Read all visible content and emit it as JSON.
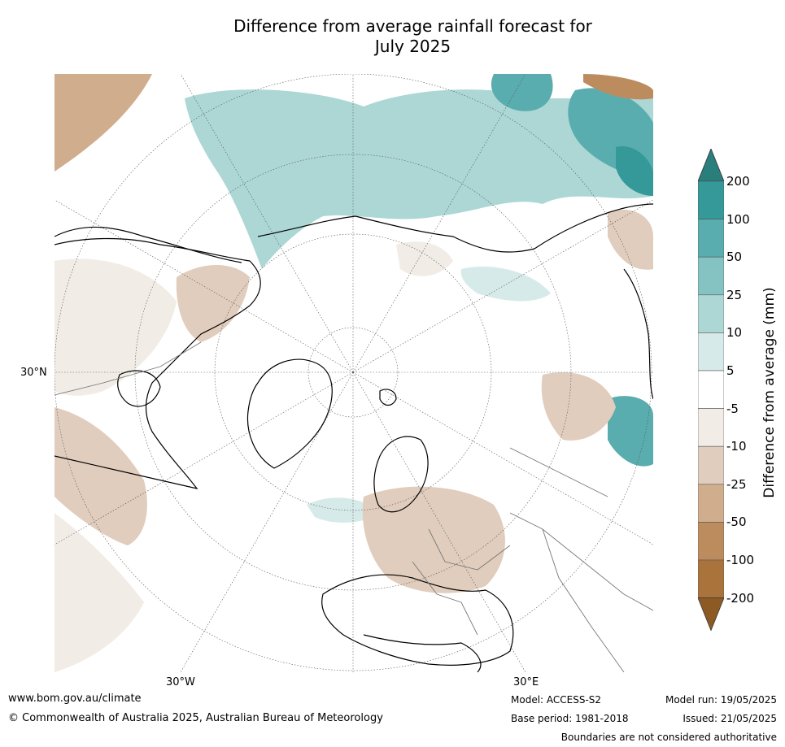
{
  "title": {
    "line1": "Difference from average rainfall forecast for",
    "line2": "July 2025"
  },
  "map": {
    "projection": "north polar stereographic",
    "lat_labels": [
      "30°N"
    ],
    "lon_labels": [
      "30°W",
      "30°E"
    ]
  },
  "colorbar": {
    "label": "Difference from average (mm)",
    "ticks": [
      "200",
      "100",
      "50",
      "25",
      "10",
      "5",
      "-5",
      "-10",
      "-25",
      "-50",
      "-100",
      "-200"
    ],
    "bins": [
      {
        "range": ">200",
        "color": "#2a7f7c"
      },
      {
        "range": "100 to 200",
        "color": "#35999a"
      },
      {
        "range": "50 to 100",
        "color": "#5aadae"
      },
      {
        "range": "25 to 50",
        "color": "#84c3c2"
      },
      {
        "range": "10 to 25",
        "color": "#acd7d5"
      },
      {
        "range": "5 to 10",
        "color": "#d6ebe9"
      },
      {
        "range": "-5 to 5",
        "color": "#ffffff"
      },
      {
        "range": "-10 to -5",
        "color": "#f1ece6"
      },
      {
        "range": "-25 to -10",
        "color": "#e1cdbd"
      },
      {
        "range": "-50 to -25",
        "color": "#cfad8d"
      },
      {
        "range": "-100 to -50",
        "color": "#bd8c5e"
      },
      {
        "range": "-200 to -100",
        "color": "#aa733c"
      },
      {
        "range": "<-200",
        "color": "#8e5a24"
      }
    ]
  },
  "footer": {
    "website": "www.bom.gov.au/climate",
    "copyright": "© Commonwealth of Australia 2025, Australian Bureau of Meteorology",
    "model": "Model: ACCESS-S2",
    "base_period": "Base period: 1981-2018",
    "model_run": "Model run: 19/05/2025",
    "issued": "Issued: 21/05/2025",
    "disclaimer": "Boundaries are not considered authoritative"
  }
}
